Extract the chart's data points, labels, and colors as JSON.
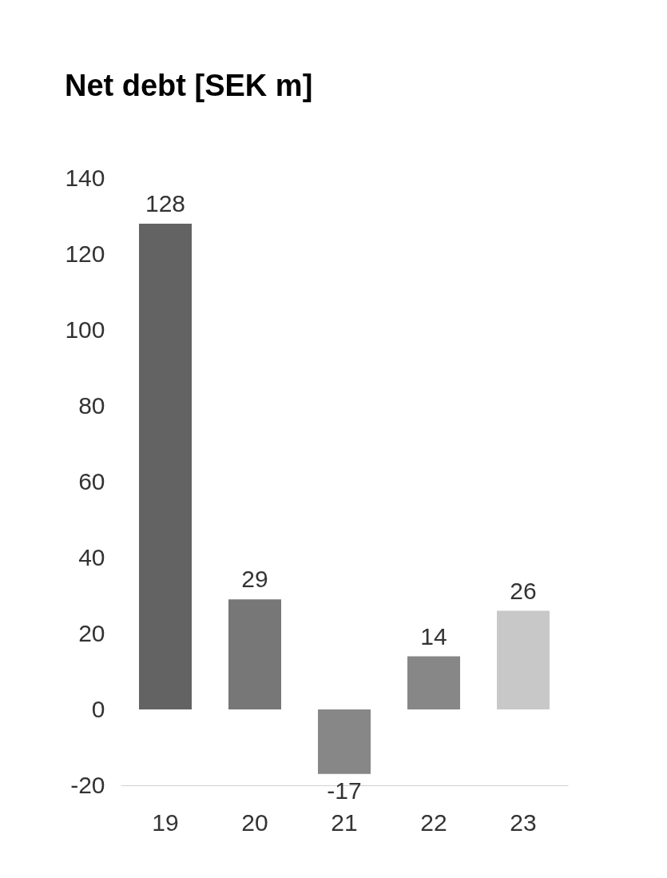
{
  "chart_data": {
    "type": "bar",
    "title": "Net debt [SEK m]",
    "categories": [
      "19",
      "20",
      "21",
      "22",
      "23"
    ],
    "values": [
      128,
      29,
      -17,
      14,
      26
    ],
    "colors": [
      "#636363",
      "#777777",
      "#878787",
      "#878787",
      "#c8c8c8"
    ],
    "ylim": [
      -20,
      140
    ],
    "yticks": [
      -20,
      0,
      20,
      40,
      60,
      80,
      100,
      120,
      140
    ],
    "grid": false,
    "data_labels": true
  }
}
